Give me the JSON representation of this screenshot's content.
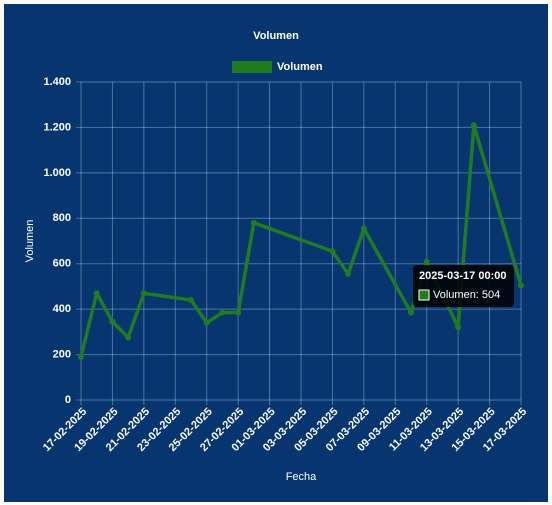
{
  "chart_data": {
    "type": "line",
    "title": "Volumen",
    "x_label": "Fecha",
    "y_label": "Volumen",
    "x": [
      "17-02-2025",
      "18-02-2025",
      "19-02-2025",
      "20-02-2025",
      "21-02-2025",
      "24-02-2025",
      "25-02-2025",
      "26-02-2025",
      "27-02-2025",
      "28-02-2025",
      "05-03-2025",
      "06-03-2025",
      "07-03-2025",
      "10-03-2025",
      "11-03-2025",
      "13-03-2025",
      "14-03-2025",
      "17-03-2025"
    ],
    "series": [
      {
        "name": "Volumen",
        "color": "#1e7d1e",
        "values": [
          190,
          470,
          345,
          275,
          470,
          440,
          340,
          385,
          385,
          780,
          655,
          555,
          755,
          385,
          610,
          320,
          1210,
          504
        ]
      }
    ],
    "xlim": [
      "17-02-2025",
      "17-03-2025"
    ],
    "xticks": [
      "17-02-2025",
      "19-02-2025",
      "21-02-2025",
      "23-02-2025",
      "25-02-2025",
      "27-02-2025",
      "01-03-2025",
      "03-03-2025",
      "05-03-2025",
      "07-03-2025",
      "09-03-2025",
      "11-03-2025",
      "13-03-2025",
      "15-03-2025",
      "17-03-2025"
    ],
    "ylim": [
      0,
      1400
    ],
    "yticks": [
      0,
      200,
      400,
      600,
      800,
      {
        "value": 1000,
        "label": "1.000"
      },
      {
        "value": 1200,
        "label": "1.200"
      },
      {
        "value": 1400,
        "label": "1.400"
      }
    ],
    "grid": true,
    "tooltip": {
      "title": "2025-03-17 00:00",
      "label": "Volumen: 504"
    }
  }
}
